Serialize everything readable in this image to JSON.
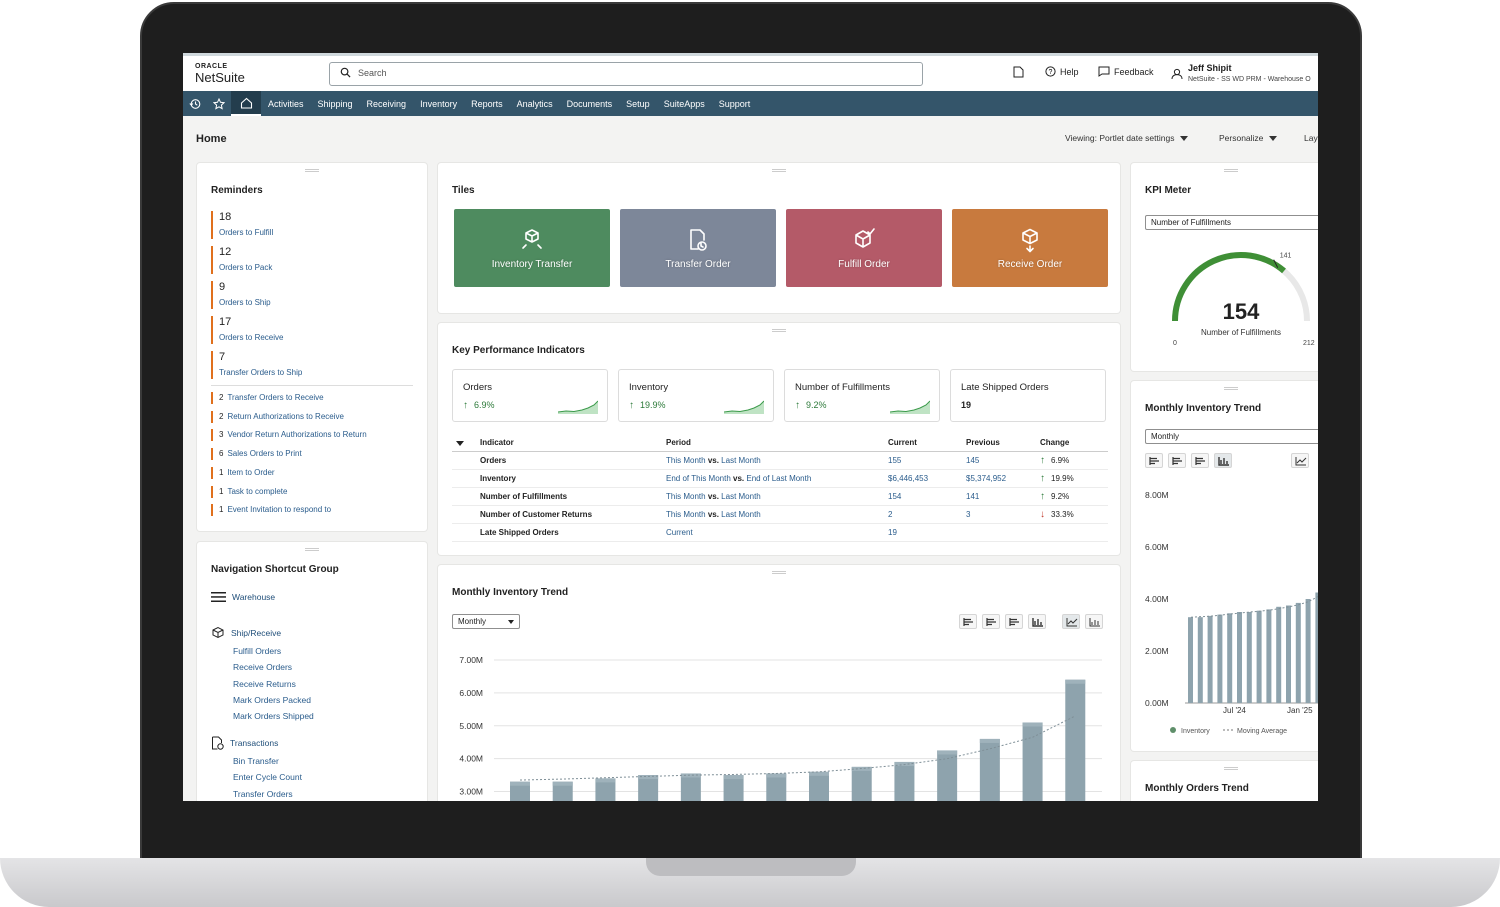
{
  "app": {
    "logo_oracle": "ORACLE",
    "logo_netsuite": "NetSuite",
    "search_placeholder": "Search",
    "help": "Help",
    "feedback": "Feedback",
    "user_name": "Jeff Shipit",
    "user_role": "NetSuite - SS WD PRM - Warehouse O"
  },
  "nav": [
    "Activities",
    "Shipping",
    "Receiving",
    "Inventory",
    "Reports",
    "Analytics",
    "Documents",
    "Setup",
    "SuiteApps",
    "Support"
  ],
  "page": {
    "title": "Home",
    "viewing": "Viewing: Portlet date settings",
    "personalize": "Personalize",
    "layout": "Lay"
  },
  "reminders": {
    "title": "Reminders",
    "big": [
      {
        "count": "18",
        "label": "Orders to Fulfill"
      },
      {
        "count": "12",
        "label": "Orders to Pack"
      },
      {
        "count": "9",
        "label": "Orders to Ship"
      },
      {
        "count": "17",
        "label": "Orders to Receive"
      },
      {
        "count": "7",
        "label": "Transfer Orders to Ship"
      }
    ],
    "small": [
      {
        "count": "2",
        "label": "Transfer Orders to Receive"
      },
      {
        "count": "2",
        "label": "Return Authorizations to Receive"
      },
      {
        "count": "3",
        "label": "Vendor Return Authorizations to Return"
      },
      {
        "count": "6",
        "label": "Sales Orders to Print"
      },
      {
        "count": "1",
        "label": "Item to Order"
      },
      {
        "count": "1",
        "label": "Task to complete"
      },
      {
        "count": "1",
        "label": "Event Invitation to respond to"
      }
    ]
  },
  "shortcuts": {
    "title": "Navigation Shortcut Group",
    "warehouse": "Warehouse",
    "ship_receive": "Ship/Receive",
    "ship_links": [
      "Fulfill Orders",
      "Receive Orders",
      "Receive Returns",
      "Mark Orders Packed",
      "Mark Orders Shipped"
    ],
    "transactions": "Transactions",
    "tx_links": [
      "Bin Transfer",
      "Enter Cycle Count",
      "Transfer Orders"
    ]
  },
  "tiles": {
    "title": "Tiles",
    "items": [
      {
        "label": "Inventory Transfer",
        "color": "#4e8b5f",
        "icon": "box-arrows-icon"
      },
      {
        "label": "Transfer Order",
        "color": "#7d8799",
        "icon": "document-clock-icon"
      },
      {
        "label": "Fulfill Order",
        "color": "#b45a68",
        "icon": "box-check-icon"
      },
      {
        "label": "Receive Order",
        "color": "#c87a3e",
        "icon": "box-down-icon"
      }
    ]
  },
  "kpi": {
    "title": "Key Performance Indicators",
    "cards": [
      {
        "name": "Orders",
        "value": "6.9%"
      },
      {
        "name": "Inventory",
        "value": "19.9%"
      },
      {
        "name": "Number of Fulfillments",
        "value": "9.2%"
      },
      {
        "name": "Late Shipped Orders",
        "value": "19"
      }
    ],
    "headers": [
      "Indicator",
      "Period",
      "Current",
      "Previous",
      "Change"
    ],
    "rows": [
      {
        "indicator": "Orders",
        "p1": "This Month",
        "vs": "vs.",
        "p2": "Last Month",
        "current": "155",
        "previous": "145",
        "change": "6.9%",
        "dir": "up"
      },
      {
        "indicator": "Inventory",
        "p1": "End of This Month",
        "vs": "vs.",
        "p2": "End of Last Month",
        "current": "$6,446,453",
        "previous": "$5,374,952",
        "change": "19.9%",
        "dir": "up"
      },
      {
        "indicator": "Number of Fulfillments",
        "p1": "This Month",
        "vs": "vs.",
        "p2": "Last Month",
        "current": "154",
        "previous": "141",
        "change": "9.2%",
        "dir": "up"
      },
      {
        "indicator": "Number of Customer Returns",
        "p1": "This Month",
        "vs": "vs.",
        "p2": "Last Month",
        "current": "2",
        "previous": "3",
        "change": "33.3%",
        "dir": "down"
      },
      {
        "indicator": "Late Shipped Orders",
        "p1": "Current",
        "vs": "",
        "p2": "",
        "current": "19",
        "previous": "",
        "change": "",
        "dir": ""
      }
    ]
  },
  "trend": {
    "title": "Monthly Inventory Trend",
    "period": "Monthly",
    "chart_data": {
      "type": "bar",
      "title": "",
      "ylim": [
        2.5,
        7.0
      ],
      "yticks": [
        "7.00M",
        "6.00M",
        "5.00M",
        "4.00M",
        "3.00M"
      ],
      "ytick_values": [
        7,
        6,
        5,
        4,
        3
      ],
      "values": [
        3.3,
        3.3,
        3.4,
        3.5,
        3.55,
        3.5,
        3.55,
        3.6,
        3.75,
        3.9,
        4.25,
        4.6,
        5.1,
        6.4
      ],
      "moving_average": [
        3.35,
        3.38,
        3.42,
        3.46,
        3.5,
        3.52,
        3.55,
        3.6,
        3.7,
        3.82,
        4.0,
        4.3,
        4.65,
        5.3
      ]
    }
  },
  "kpi_meter": {
    "title": "KPI Meter",
    "select": "Number of Fulfillments",
    "value": "154",
    "label": "Number of Fulfillments",
    "min": "0",
    "max": "212",
    "target": "141",
    "fraction": 0.726
  },
  "side_trend": {
    "title": "Monthly Inventory Trend",
    "period": "Monthly",
    "chart_data": {
      "type": "bar",
      "ylim": [
        0,
        8
      ],
      "yticks": [
        "8.00M",
        "6.00M",
        "4.00M",
        "2.00M",
        "0.00M"
      ],
      "ytick_values": [
        8,
        6,
        4,
        2,
        0
      ],
      "xticks": [
        "Jul '24",
        "Jan '25"
      ],
      "values": [
        3.3,
        3.3,
        3.35,
        3.4,
        3.45,
        3.5,
        3.5,
        3.55,
        3.6,
        3.7,
        3.75,
        3.85,
        4.0,
        4.25,
        4.6,
        5.1,
        5.4
      ],
      "moving_average": [
        3.3,
        3.32,
        3.34,
        3.38,
        3.42,
        3.46,
        3.5,
        3.53,
        3.57,
        3.63,
        3.7,
        3.78,
        3.9,
        4.1,
        4.4,
        4.8,
        5.2
      ],
      "legend": [
        "Inventory",
        "Moving Average"
      ]
    }
  },
  "orders_trend": {
    "title": "Monthly Orders Trend"
  }
}
